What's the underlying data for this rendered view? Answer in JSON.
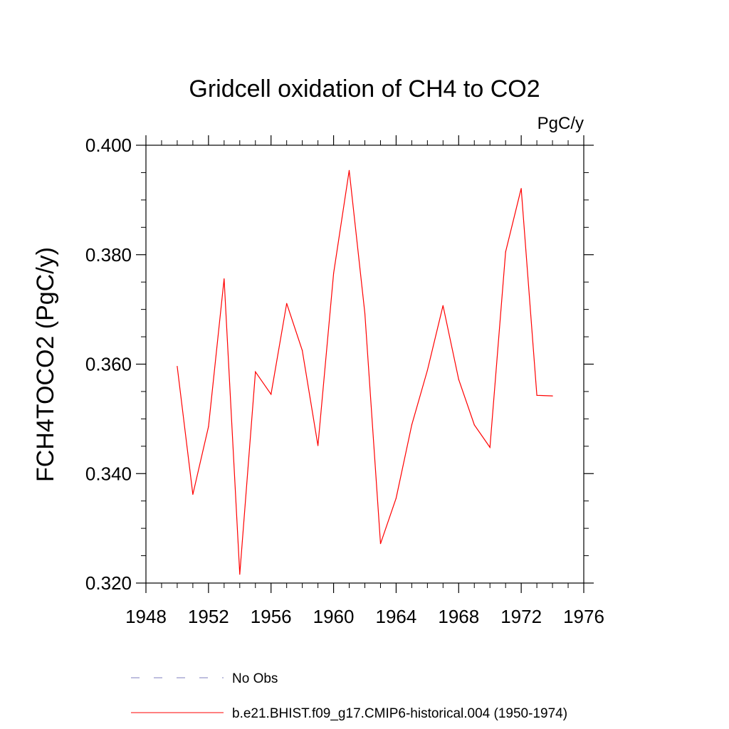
{
  "chart_data": {
    "type": "line",
    "title": "Gridcell oxidation of CH4 to CO2",
    "units": "PgC/y",
    "ylabel": "FCH4TOCO2  (PgC/y)",
    "xlabel": "",
    "xlim": [
      1948,
      1976
    ],
    "ylim": [
      0.32,
      0.4
    ],
    "xticks": [
      1948,
      1952,
      1956,
      1960,
      1964,
      1968,
      1972,
      1976
    ],
    "xtick_labels": [
      "1948",
      "1952",
      "1956",
      "1960",
      "1964",
      "1968",
      "1972",
      "1976"
    ],
    "yticks": [
      0.32,
      0.34,
      0.36,
      0.38,
      0.4
    ],
    "ytick_labels": [
      "0.320",
      "0.340",
      "0.360",
      "0.380",
      "0.400"
    ],
    "grid": false,
    "legend_position": "bottom",
    "series": [
      {
        "name": "b.e21.BHIST.f09_g17.CMIP6-historical.004 (1950-1974)",
        "color": "#ff0000",
        "style": "solid",
        "x": [
          1950,
          1951,
          1952,
          1953,
          1954,
          1955,
          1956,
          1957,
          1958,
          1959,
          1960,
          1961,
          1962,
          1963,
          1964,
          1965,
          1966,
          1967,
          1968,
          1969,
          1970,
          1971,
          1972,
          1973,
          1974
        ],
        "y": [
          0.3596,
          0.3362,
          0.3486,
          0.3756,
          0.3216,
          0.3586,
          0.3545,
          0.3711,
          0.3625,
          0.3451,
          0.3766,
          0.3954,
          0.3693,
          0.3272,
          0.3355,
          0.3489,
          0.3589,
          0.3707,
          0.3572,
          0.3489,
          0.3448,
          0.3805,
          0.3921,
          0.3543,
          0.3542
        ]
      }
    ],
    "legend": [
      {
        "label": "No Obs",
        "color": "#7f7fbf",
        "style": "dashed"
      },
      {
        "label": "b.e21.BHIST.f09_g17.CMIP6-historical.004 (1950-1974)",
        "color": "#ff0000",
        "style": "solid"
      }
    ]
  }
}
